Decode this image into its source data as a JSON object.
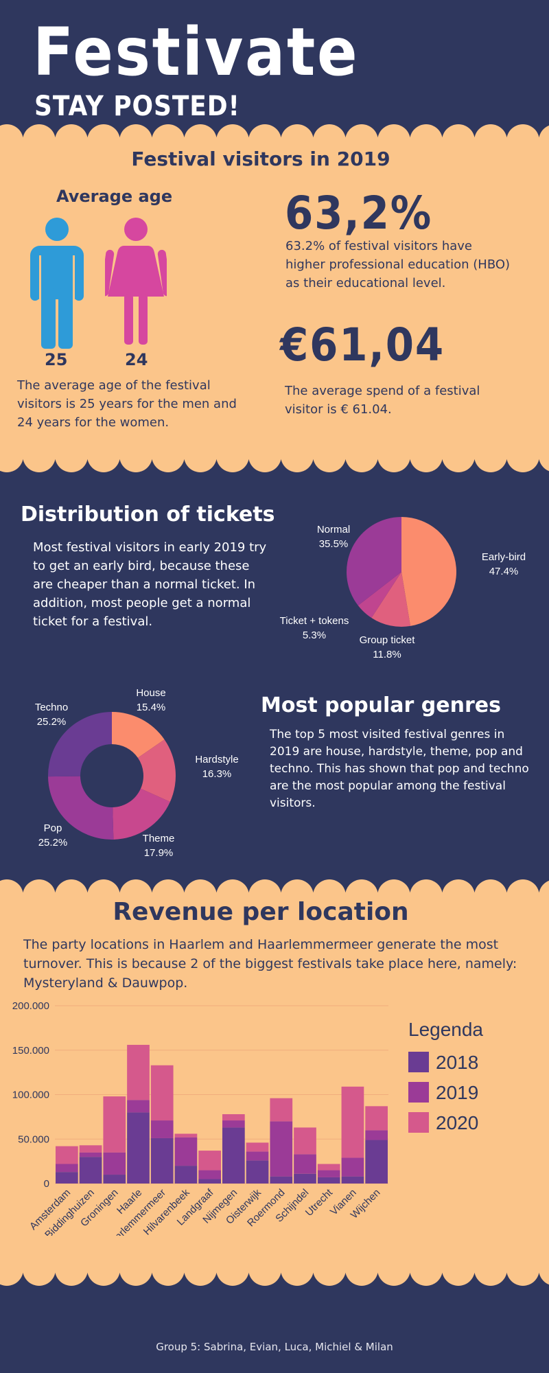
{
  "header": {
    "title": "Festivate",
    "subtitle": "STAY POSTED!"
  },
  "visitors": {
    "section_title": "Festival visitors in 2019",
    "avg_age_title": "Average age",
    "men_age": "25",
    "women_age": "24",
    "age_text": "The average age of the festival visitors is 25 years for the men and 24 years for the women.",
    "hbo_value": "63,2%",
    "hbo_text": "63.2% of festival visitors have higher professional education (HBO) as their educational level.",
    "spend_value": "€61,04",
    "spend_text": "The average spend of a festival visitor is € 61.04.",
    "colors": {
      "men": "#2e9bd8",
      "women": "#d6479f"
    }
  },
  "tickets": {
    "section_title": "Distribution of tickets",
    "text": "Most festival visitors in early 2019 try to get an early bird, because these are cheaper than a normal ticket. In addition, most people get a normal ticket for a festival."
  },
  "genres": {
    "section_title": "Most popular genres",
    "text": "The top 5 most visited festival genres in 2019 are house, hardstyle, theme, pop and techno. This has shown that pop and techno are the most popular among the festival visitors."
  },
  "revenue": {
    "section_title": "Revenue per location",
    "text": "The party locations in Haarlem and Haarlemmermeer generate the most turnover. This is because 2 of the biggest festivals take place here, namely: Mysteryland & Dauwpop."
  },
  "footer": {
    "text": "Group 5: Sabrina, Evian, Luca, Michiel & Milan"
  },
  "chart_data": [
    {
      "type": "pie",
      "labels": [
        "Early-bird",
        "Group ticket",
        "Ticket + tokens",
        "Normal"
      ],
      "values": [
        47.4,
        11.8,
        5.3,
        35.5
      ],
      "value_labels": [
        "47.4%",
        "11.8%",
        "5.3%",
        "35.5%"
      ],
      "colors": [
        "#fb8c6d",
        "#e0607e",
        "#c0458f",
        "#9b3b97"
      ]
    },
    {
      "type": "pie",
      "donut": true,
      "labels": [
        "House",
        "Hardstyle",
        "Theme",
        "Pop",
        "Techno"
      ],
      "values": [
        15.4,
        16.3,
        17.9,
        25.2,
        25.2
      ],
      "value_labels": [
        "15.4%",
        "16.3%",
        "17.9%",
        "25.2%",
        "25.2%"
      ],
      "colors": [
        "#fb8c6d",
        "#e0607e",
        "#c8488e",
        "#9b3b97",
        "#6a3c93"
      ]
    },
    {
      "type": "bar",
      "stacked": true,
      "categories": [
        "Amsterdam",
        "Biddinghuizen",
        "Groningen",
        "Haarle",
        "Haarlemmermeer",
        "Hilvarenbeek",
        "Landgraaf",
        "Nijmegen",
        "Oisterwijk",
        "Roermond",
        "Schijndel",
        "Utrecht",
        "Vianen",
        "Wijchen"
      ],
      "series": [
        {
          "name": "2018",
          "color": "#6a3c93",
          "values": [
            13000,
            30000,
            10000,
            80000,
            51000,
            20000,
            5000,
            63000,
            26000,
            8000,
            11000,
            7000,
            8000,
            49000
          ]
        },
        {
          "name": "2019",
          "color": "#9b3b97",
          "values": [
            9000,
            5000,
            25000,
            14000,
            20000,
            32000,
            10000,
            8000,
            10000,
            62000,
            22000,
            8000,
            21000,
            11000
          ]
        },
        {
          "name": "2020",
          "color": "#d5598c",
          "values": [
            20000,
            8000,
            63000,
            62000,
            62000,
            4000,
            22000,
            7000,
            10000,
            26000,
            30000,
            7000,
            80000,
            27000
          ]
        }
      ],
      "ylim": [
        0,
        200000
      ],
      "yticks": [
        "0",
        "50.000",
        "100.000",
        "150.000",
        "200.000"
      ],
      "ytick_values": [
        0,
        50000,
        100000,
        150000,
        200000
      ],
      "legend_title": "Legenda",
      "legend": "right",
      "grid": true
    }
  ]
}
